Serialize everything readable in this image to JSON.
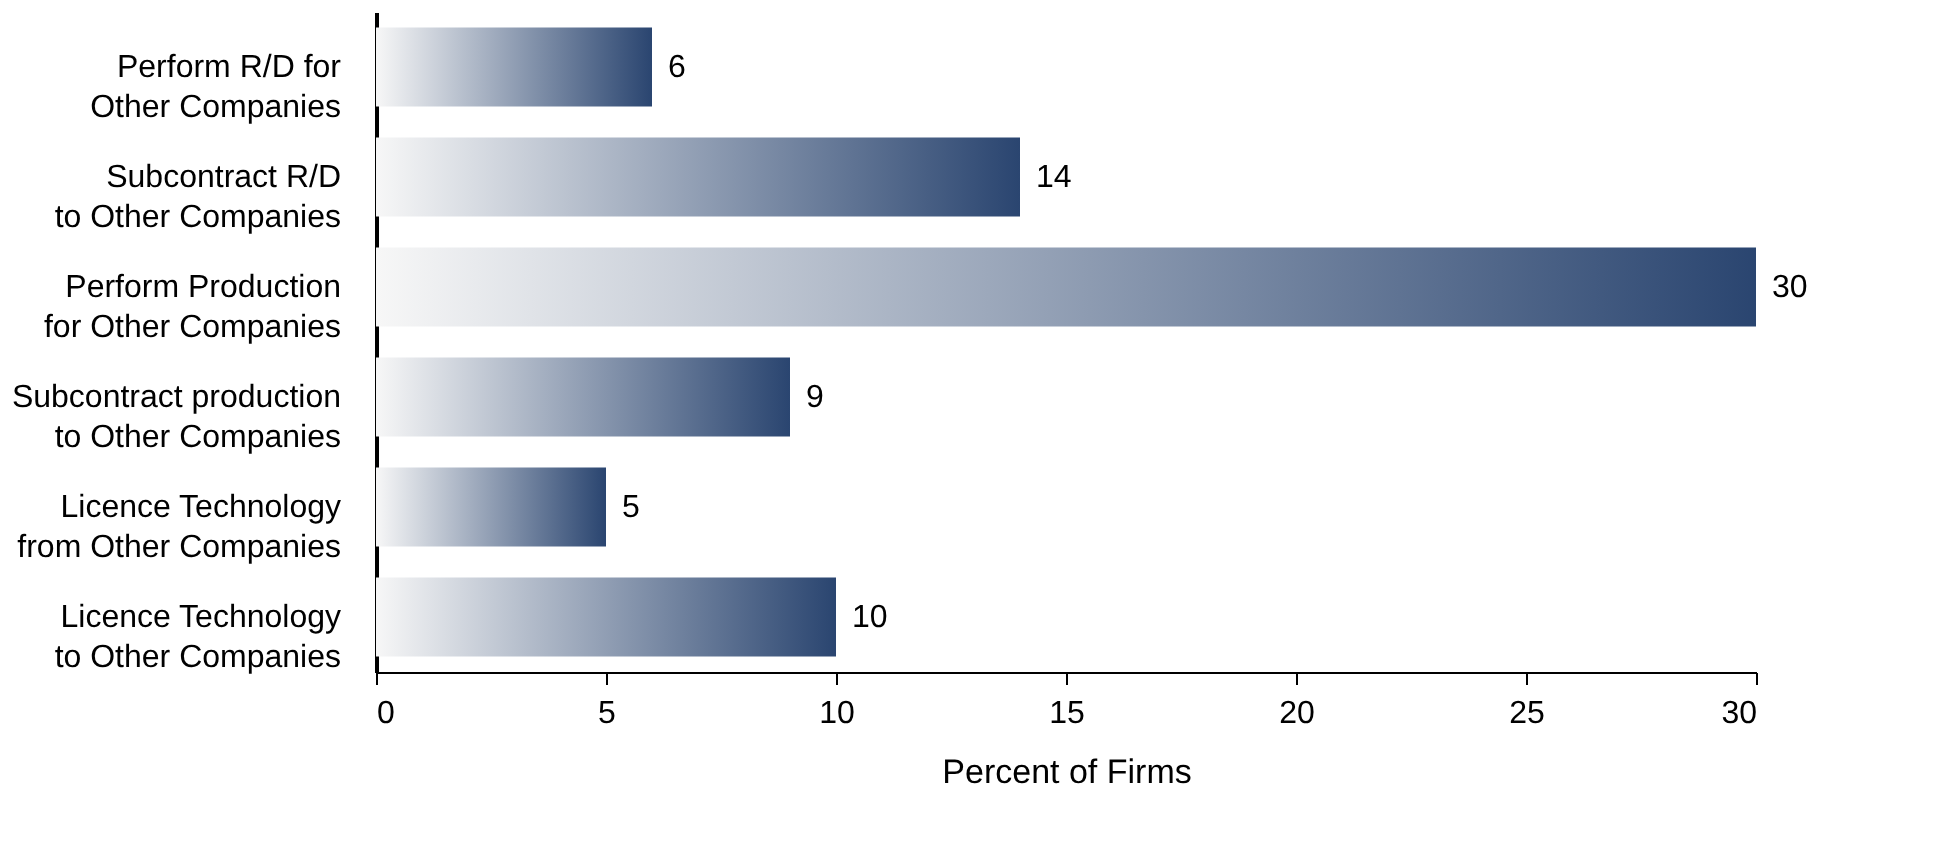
{
  "chart_data": {
    "type": "bar",
    "orientation": "horizontal",
    "xlabel": "Percent of Firms",
    "categories": [
      "Perform R/D for\nOther Companies",
      "Subcontract R/D\nto Other Companies",
      "Perform Production\nfor Other Companies",
      "Subcontract production\nto Other Companies",
      "Licence Technology\nfrom Other Companies",
      "Licence Technology\nto Other Companies"
    ],
    "values": [
      6,
      14,
      30,
      9,
      5,
      10
    ],
    "color": "#2a4570",
    "xlim": [
      0,
      30
    ],
    "xticks": [
      0,
      5,
      10,
      15,
      20,
      25,
      30
    ],
    "data_labels": true,
    "grid": false
  }
}
